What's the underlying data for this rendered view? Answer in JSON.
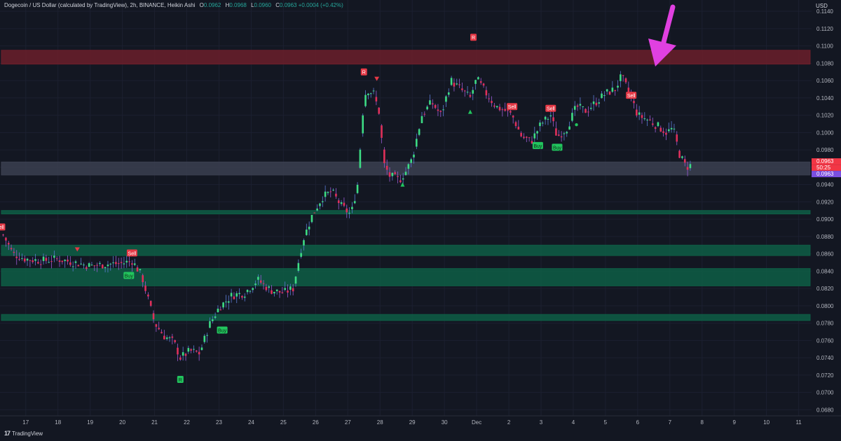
{
  "header": {
    "symbol_title": "Dogecoin / US Dollar (calculated by TradingView), 2h, BINANCE, Heikin Ashi",
    "o_label": "O",
    "o_value": "0.0962",
    "h_label": "H",
    "h_value": "0.0968",
    "l_label": "L",
    "l_value": "0.0960",
    "c_label": "C",
    "c_value": "0.0963",
    "change": "+0.0004 (+0.42%)"
  },
  "currency": "USD",
  "footer": {
    "logo": "17",
    "brand": "TradingView"
  },
  "colors": {
    "up": "#3ddc84",
    "down": "#e0305a",
    "resistance_zone": "#6b1f2a",
    "support_zone": "#0e5e45",
    "current_zone": "#3b3f50",
    "arrow": "#e040e0",
    "sell": "#e63946",
    "buy": "#22c55e"
  },
  "price_labels": {
    "last_price": "0.0963",
    "countdown": "50:25",
    "heikin_close": "0.0963"
  },
  "chart_data": {
    "type": "candlestick",
    "style": "Heikin Ashi",
    "interval": "2h",
    "y_axis": {
      "min": 0.0673,
      "max": 0.1153,
      "ticks": [
        "0.1140",
        "0.1120",
        "0.1100",
        "0.1080",
        "0.1060",
        "0.1040",
        "0.1020",
        "0.1000",
        "0.0980",
        "0.0960",
        "0.0940",
        "0.0920",
        "0.0900",
        "0.0880",
        "0.0860",
        "0.0840",
        "0.0820",
        "0.0800",
        "0.0780",
        "0.0760",
        "0.0740",
        "0.0720",
        "0.0700",
        "0.0680"
      ]
    },
    "x_axis": {
      "ticks": [
        {
          "label": "17",
          "day": 17
        },
        {
          "label": "18",
          "day": 18
        },
        {
          "label": "19",
          "day": 19
        },
        {
          "label": "20",
          "day": 20
        },
        {
          "label": "21",
          "day": 21
        },
        {
          "label": "22",
          "day": 22
        },
        {
          "label": "23",
          "day": 23
        },
        {
          "label": "24",
          "day": 24
        },
        {
          "label": "25",
          "day": 25
        },
        {
          "label": "26",
          "day": 26
        },
        {
          "label": "27",
          "day": 27
        },
        {
          "label": "28",
          "day": 28
        },
        {
          "label": "29",
          "day": 29
        },
        {
          "label": "30",
          "day": 30
        },
        {
          "label": "Dec",
          "day": 31
        },
        {
          "label": "2",
          "day": 32
        },
        {
          "label": "3",
          "day": 33
        },
        {
          "label": "4",
          "day": 34
        },
        {
          "label": "5",
          "day": 35
        },
        {
          "label": "6",
          "day": 36
        },
        {
          "label": "7",
          "day": 37
        },
        {
          "label": "8",
          "day": 38
        },
        {
          "label": "9",
          "day": 39
        },
        {
          "label": "10",
          "day": 40
        },
        {
          "label": "11",
          "day": 41
        }
      ]
    },
    "zones": [
      {
        "name": "resistance",
        "from": 0.1079,
        "to": 0.1095,
        "color": "#6b1f2a"
      },
      {
        "name": "current",
        "from": 0.0951,
        "to": 0.0966,
        "color": "#3b3f50"
      },
      {
        "name": "support-1",
        "from": 0.0906,
        "to": 0.091,
        "color": "#0e5e45"
      },
      {
        "name": "support-2",
        "from": 0.0858,
        "to": 0.087,
        "color": "#0e5e45"
      },
      {
        "name": "support-3",
        "from": 0.0823,
        "to": 0.0843,
        "color": "#0e5e45"
      },
      {
        "name": "support-4",
        "from": 0.0783,
        "to": 0.079,
        "color": "#0e5e45"
      }
    ],
    "path": [
      [
        16.3,
        0.0882
      ],
      [
        16.6,
        0.086
      ],
      [
        17.0,
        0.0854
      ],
      [
        17.5,
        0.0852
      ],
      [
        18.0,
        0.0854
      ],
      [
        18.5,
        0.085
      ],
      [
        19.0,
        0.0846
      ],
      [
        19.5,
        0.0848
      ],
      [
        20.0,
        0.0849
      ],
      [
        20.3,
        0.0852
      ],
      [
        20.6,
        0.0835
      ],
      [
        21.0,
        0.078
      ],
      [
        21.3,
        0.0765
      ],
      [
        21.6,
        0.0758
      ],
      [
        21.8,
        0.074
      ],
      [
        22.1,
        0.0748
      ],
      [
        22.4,
        0.0745
      ],
      [
        22.7,
        0.0778
      ],
      [
        23.0,
        0.0798
      ],
      [
        23.4,
        0.0812
      ],
      [
        23.8,
        0.0815
      ],
      [
        24.2,
        0.083
      ],
      [
        24.6,
        0.0818
      ],
      [
        25.0,
        0.0815
      ],
      [
        25.3,
        0.082
      ],
      [
        25.6,
        0.0875
      ],
      [
        25.9,
        0.0905
      ],
      [
        26.2,
        0.0925
      ],
      [
        26.5,
        0.0932
      ],
      [
        26.8,
        0.0915
      ],
      [
        27.1,
        0.0905
      ],
      [
        27.3,
        0.094
      ],
      [
        27.5,
        0.104
      ],
      [
        27.6,
        0.105
      ],
      [
        27.8,
        0.1045
      ],
      [
        28.0,
        0.102
      ],
      [
        28.1,
        0.0965
      ],
      [
        28.3,
        0.095
      ],
      [
        28.6,
        0.0945
      ],
      [
        28.8,
        0.0955
      ],
      [
        29.0,
        0.097
      ],
      [
        29.3,
        0.102
      ],
      [
        29.6,
        0.1035
      ],
      [
        29.9,
        0.102
      ],
      [
        30.2,
        0.106
      ],
      [
        30.5,
        0.105
      ],
      [
        30.8,
        0.104
      ],
      [
        31.0,
        0.1062
      ],
      [
        31.3,
        0.1045
      ],
      [
        31.6,
        0.103
      ],
      [
        31.9,
        0.1025
      ],
      [
        32.1,
        0.102
      ],
      [
        32.4,
        0.0995
      ],
      [
        32.7,
        0.099
      ],
      [
        33.0,
        0.101
      ],
      [
        33.3,
        0.102
      ],
      [
        33.5,
        0.0995
      ],
      [
        33.8,
        0.1005
      ],
      [
        34.1,
        0.103
      ],
      [
        34.4,
        0.1025
      ],
      [
        34.7,
        0.1035
      ],
      [
        35.0,
        0.1045
      ],
      [
        35.3,
        0.105
      ],
      [
        35.5,
        0.1065
      ],
      [
        35.8,
        0.104
      ],
      [
        36.0,
        0.102
      ],
      [
        36.3,
        0.1015
      ],
      [
        36.6,
        0.1008
      ],
      [
        36.9,
        0.1
      ],
      [
        37.1,
        0.1005
      ],
      [
        37.3,
        0.0975
      ],
      [
        37.5,
        0.096
      ],
      [
        37.7,
        0.0963
      ]
    ],
    "signals": [
      {
        "label": "Sell",
        "day": 16.2,
        "price": 0.0891,
        "kind": "sell"
      },
      {
        "label": "Sell",
        "day": 20.3,
        "price": 0.0861,
        "kind": "sell"
      },
      {
        "label": "Buy",
        "day": 20.2,
        "price": 0.0835,
        "kind": "buy"
      },
      {
        "label": "R",
        "day": 21.8,
        "price": 0.0715,
        "kind": "buy"
      },
      {
        "label": "Buy",
        "day": 23.1,
        "price": 0.0772,
        "kind": "buy"
      },
      {
        "label": "R",
        "day": 27.5,
        "price": 0.107,
        "kind": "sell"
      },
      {
        "label": "R",
        "day": 30.9,
        "price": 0.111,
        "kind": "sell"
      },
      {
        "label": "Sell",
        "day": 32.1,
        "price": 0.103,
        "kind": "sell"
      },
      {
        "label": "Sell",
        "day": 33.3,
        "price": 0.1028,
        "kind": "sell"
      },
      {
        "label": "Buy",
        "day": 32.9,
        "price": 0.0985,
        "kind": "buy"
      },
      {
        "label": "Buy",
        "day": 33.5,
        "price": 0.0983,
        "kind": "buy"
      },
      {
        "label": "Sell",
        "day": 35.8,
        "price": 0.1043,
        "kind": "sell"
      }
    ],
    "markers": [
      {
        "day": 18.6,
        "price": 0.0865,
        "shape": "triangle-down",
        "color": "#e63946"
      },
      {
        "day": 27.9,
        "price": 0.1062,
        "shape": "triangle-down",
        "color": "#e63946"
      },
      {
        "day": 28.7,
        "price": 0.094,
        "shape": "triangle-up",
        "color": "#22c55e"
      },
      {
        "day": 30.8,
        "price": 0.1024,
        "shape": "triangle-up",
        "color": "#22c55e"
      },
      {
        "day": 34.1,
        "price": 0.1009,
        "shape": "dot",
        "color": "#22c55e"
      }
    ]
  }
}
